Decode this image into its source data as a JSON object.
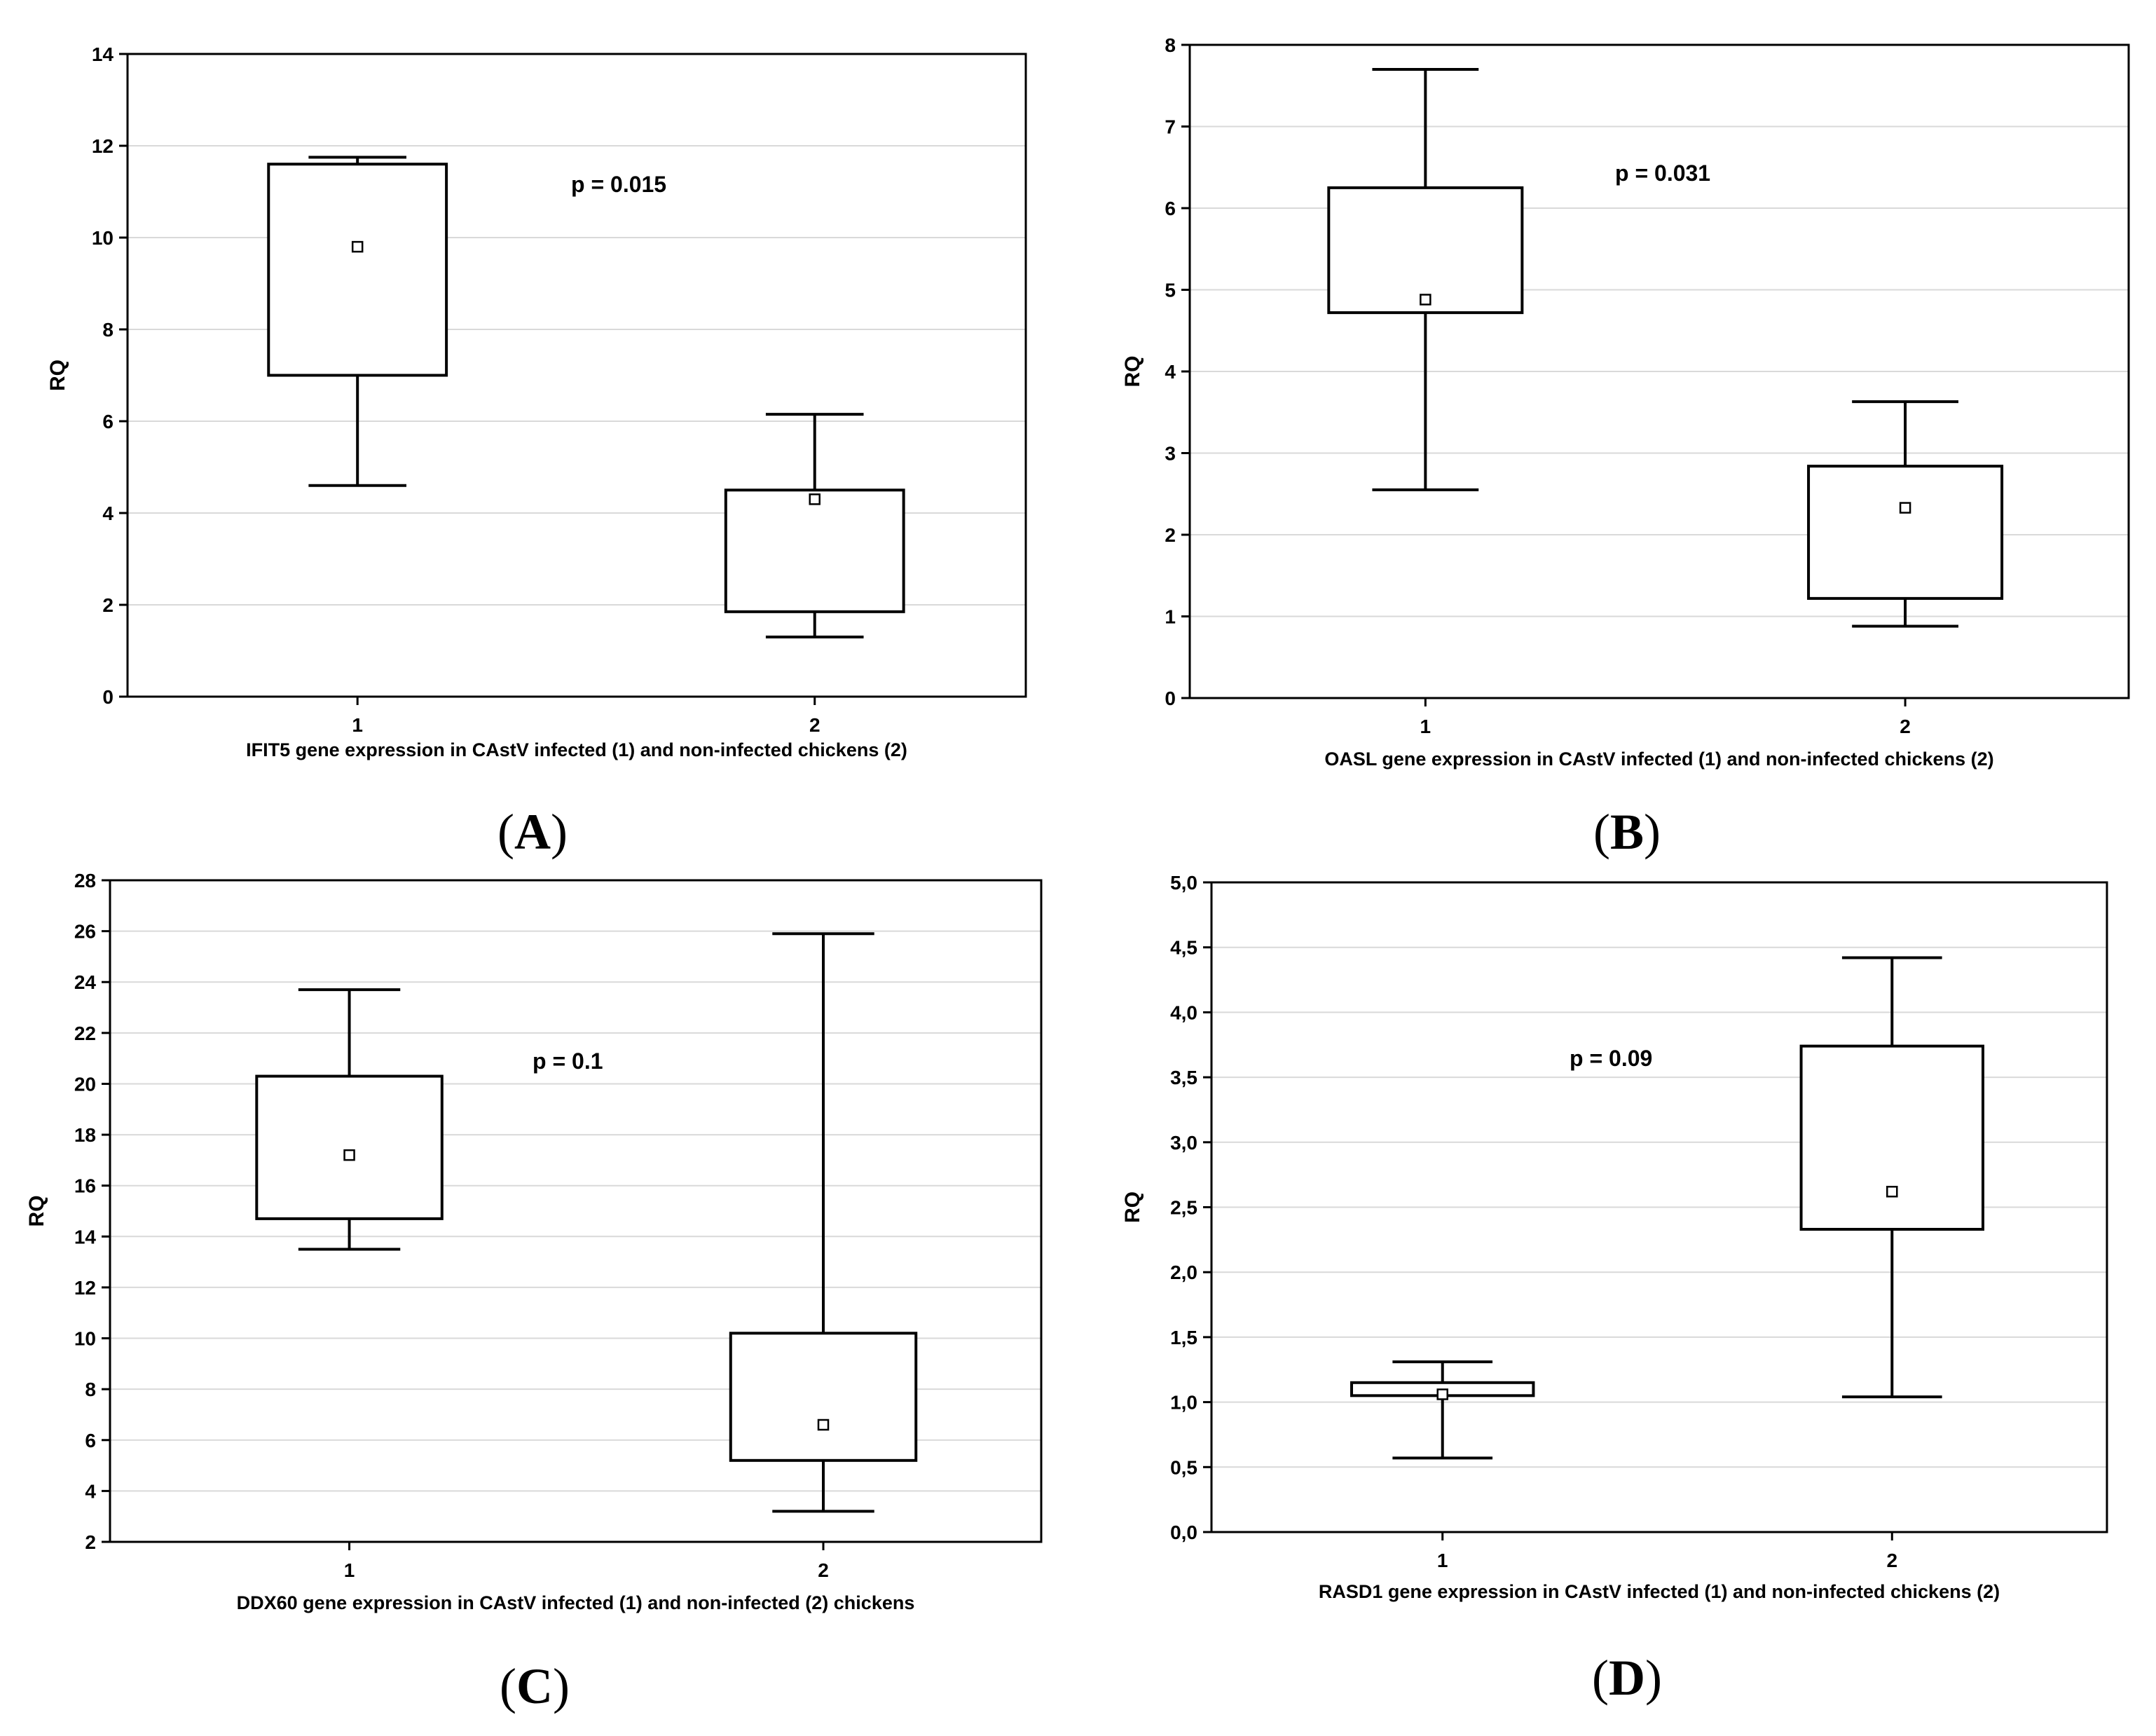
{
  "chart_data": [
    {
      "panel": "A",
      "type": "box",
      "xlabel": "IFIT5 gene expression in CAstV infected (1) and non-infected chickens (2)",
      "ylabel": "RQ",
      "annotation": "p = 0.015",
      "ylim": [
        0,
        14
      ],
      "yticks": [
        0,
        2,
        4,
        6,
        8,
        10,
        12,
        14
      ],
      "ytick_labels": [
        "0",
        "2",
        "4",
        "6",
        "8",
        "10",
        "12",
        "14"
      ],
      "categories": [
        "1",
        "2"
      ],
      "boxes": [
        {
          "category": "1",
          "whisker_low": 4.6,
          "q1": 7.0,
          "q3": 11.6,
          "whisker_high": 11.75,
          "mean": 9.8
        },
        {
          "category": "2",
          "whisker_low": 1.3,
          "q1": 1.85,
          "q3": 4.5,
          "whisker_high": 6.15,
          "mean": 4.3
        }
      ],
      "grid": true
    },
    {
      "panel": "B",
      "type": "box",
      "xlabel": "OASL gene expression in CAstV infected (1) and non-infected chickens (2)",
      "ylabel": "RQ",
      "annotation": "p = 0.031",
      "ylim": [
        0,
        8
      ],
      "yticks": [
        0,
        1,
        2,
        3,
        4,
        5,
        6,
        7,
        8
      ],
      "ytick_labels": [
        "0",
        "1",
        "2",
        "3",
        "4",
        "5",
        "6",
        "7",
        "8"
      ],
      "categories": [
        "1",
        "2"
      ],
      "boxes": [
        {
          "category": "1",
          "whisker_low": 2.55,
          "q1": 4.72,
          "q3": 6.25,
          "whisker_high": 7.7,
          "mean": 4.88
        },
        {
          "category": "2",
          "whisker_low": 0.88,
          "q1": 1.22,
          "q3": 2.84,
          "whisker_high": 3.63,
          "mean": 2.33
        }
      ],
      "grid": true
    },
    {
      "panel": "C",
      "type": "box",
      "xlabel": "DDX60 gene expression in CAstV infected (1) and non-infected (2) chickens",
      "ylabel": "RQ",
      "annotation": "p = 0.1",
      "ylim": [
        2,
        28
      ],
      "yticks": [
        2,
        4,
        6,
        8,
        10,
        12,
        14,
        16,
        18,
        20,
        22,
        24,
        26,
        28
      ],
      "ytick_labels": [
        "2",
        "4",
        "6",
        "8",
        "10",
        "12",
        "14",
        "16",
        "18",
        "20",
        "22",
        "24",
        "26",
        "28"
      ],
      "categories": [
        "1",
        "2"
      ],
      "boxes": [
        {
          "category": "1",
          "whisker_low": 13.5,
          "q1": 14.7,
          "q3": 20.3,
          "whisker_high": 23.7,
          "mean": 17.2
        },
        {
          "category": "2",
          "whisker_low": 3.2,
          "q1": 5.2,
          "q3": 10.2,
          "whisker_high": 25.9,
          "mean": 6.6
        }
      ],
      "grid": true
    },
    {
      "panel": "D",
      "type": "box",
      "xlabel": "RASD1 gene expression in CAstV infected (1) and non-infected chickens (2)",
      "ylabel": "RQ",
      "annotation": "p = 0.09",
      "ylim": [
        0,
        5
      ],
      "yticks": [
        0,
        0.5,
        1,
        1.5,
        2,
        2.5,
        3,
        3.5,
        4,
        4.5,
        5
      ],
      "ytick_labels": [
        "0,0",
        "0,5",
        "1,0",
        "1,5",
        "2,0",
        "2,5",
        "3,0",
        "3,5",
        "4,0",
        "4,5",
        "5,0"
      ],
      "categories": [
        "1",
        "2"
      ],
      "boxes": [
        {
          "category": "1",
          "whisker_low": 0.57,
          "q1": 1.05,
          "q3": 1.15,
          "whisker_high": 1.31,
          "mean": 1.06
        },
        {
          "category": "2",
          "whisker_low": 1.04,
          "q1": 2.33,
          "q3": 3.74,
          "whisker_high": 4.42,
          "mean": 2.62
        }
      ],
      "grid": true
    }
  ]
}
